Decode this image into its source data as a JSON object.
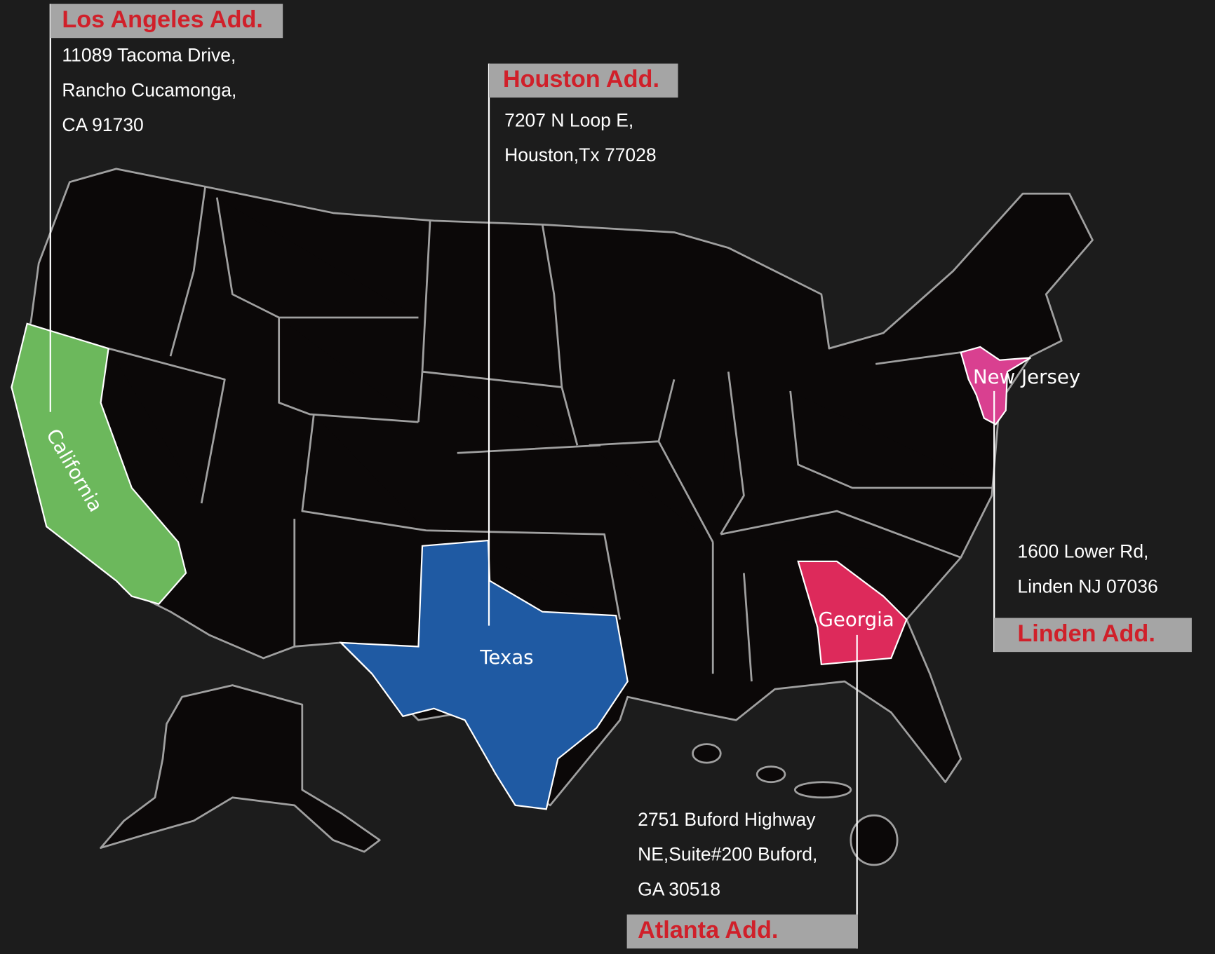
{
  "offices": [
    {
      "title": "Los Angeles Add.",
      "address": [
        "11089 Tacoma Drive,",
        "Rancho Cucamonga,",
        "CA 91730"
      ]
    },
    {
      "title": "Houston Add.",
      "address": [
        "7207 N Loop E,",
        "Houston,Tx 77028"
      ]
    },
    {
      "title": "Linden Add.",
      "address": [
        "1600 Lower Rd,",
        "Linden NJ 07036"
      ]
    },
    {
      "title": "Atlanta Add.",
      "address": [
        "2751 Buford Highway",
        "NE,Suite#200 Buford,",
        "GA 30518"
      ]
    }
  ],
  "states": [
    "California",
    "Texas",
    "New Jersey",
    "Georgia"
  ]
}
